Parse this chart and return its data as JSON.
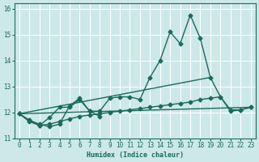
{
  "title": "",
  "xlabel": "Humidex (Indice chaleur)",
  "ylabel": "",
  "xlim": [
    -0.5,
    23.5
  ],
  "ylim": [
    11.0,
    16.2
  ],
  "yticks": [
    11,
    12,
    13,
    14,
    15,
    16
  ],
  "xticks": [
    0,
    1,
    2,
    3,
    4,
    5,
    6,
    7,
    8,
    9,
    10,
    11,
    12,
    13,
    14,
    15,
    16,
    17,
    18,
    19,
    20,
    21,
    22,
    23
  ],
  "bg_color": "#cce8e8",
  "grid_color": "#ffffff",
  "line_color": "#1a6b5a",
  "series": [
    {
      "x": [
        0,
        1,
        2,
        3,
        4,
        5,
        6,
        7,
        8
      ],
      "y": [
        11.95,
        11.7,
        11.55,
        11.45,
        11.55,
        12.25,
        12.55,
        12.05,
        11.85
      ],
      "marker": "D",
      "markersize": 2.5,
      "linewidth": 1.0
    },
    {
      "x": [
        0,
        1,
        2,
        3,
        4,
        5,
        6,
        7,
        8,
        9,
        10,
        11,
        12,
        13,
        14,
        15,
        16,
        17,
        18,
        19,
        20,
        21,
        22,
        23
      ],
      "y": [
        11.95,
        11.65,
        11.5,
        11.55,
        11.65,
        11.75,
        11.85,
        11.9,
        11.95,
        12.0,
        12.05,
        12.1,
        12.15,
        12.2,
        12.25,
        12.3,
        12.35,
        12.4,
        12.5,
        12.55,
        12.6,
        12.1,
        12.1,
        12.2
      ],
      "marker": "D",
      "markersize": 2.5,
      "linewidth": 1.0
    },
    {
      "x": [
        0,
        1,
        2,
        3,
        4,
        5,
        6,
        7,
        8,
        9,
        10,
        11,
        12,
        13,
        14,
        15,
        16,
        17,
        18,
        19,
        20,
        21,
        22,
        23
      ],
      "y": [
        11.95,
        11.7,
        11.5,
        11.8,
        12.2,
        12.2,
        12.5,
        12.05,
        12.05,
        12.55,
        12.6,
        12.6,
        12.5,
        13.35,
        14.0,
        15.1,
        14.65,
        15.75,
        14.85,
        13.35,
        12.6,
        12.05,
        12.1,
        12.2
      ],
      "marker": "D",
      "markersize": 2.5,
      "linewidth": 1.0
    },
    {
      "x": [
        0,
        23
      ],
      "y": [
        11.95,
        12.2
      ],
      "marker": null,
      "markersize": 0,
      "linewidth": 1.0
    },
    {
      "x": [
        0,
        19
      ],
      "y": [
        11.95,
        13.35
      ],
      "marker": null,
      "markersize": 0,
      "linewidth": 1.0
    }
  ],
  "font_family": "monospace",
  "tick_fontsize": 5.5,
  "xlabel_fontsize": 6.0
}
